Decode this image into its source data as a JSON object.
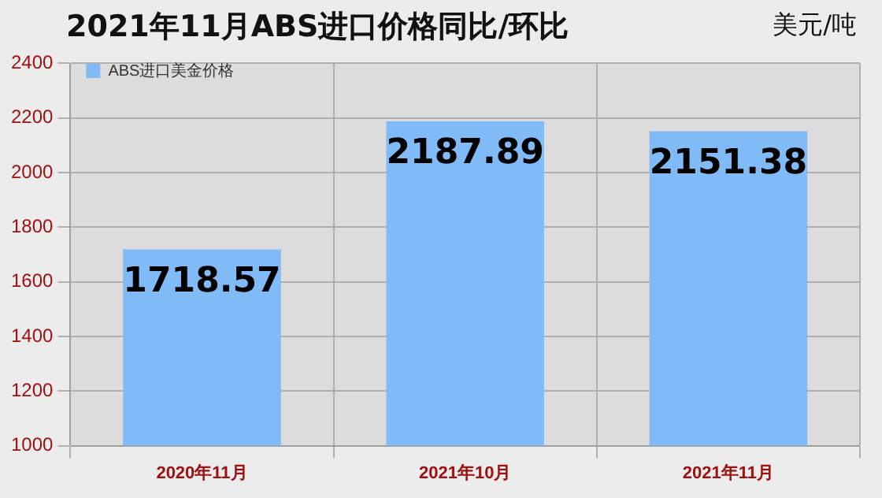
{
  "chart_data": {
    "type": "bar",
    "title": "2021年11月ABS进口价格同比/环比",
    "ylabel": "美元/吨",
    "categories": [
      "2020年11月",
      "2021年10月",
      "2021年11月"
    ],
    "series": [
      {
        "name": "ABS进口美金价格",
        "color": "#80bbf8",
        "values": [
          1718.57,
          2187.89,
          2151.38
        ]
      }
    ],
    "ylim": [
      1000,
      2400
    ],
    "yticks": [
      1000,
      1200,
      1400,
      1600,
      1800,
      2000,
      2200,
      2400
    ],
    "grid": true,
    "legend": "top left",
    "data_labels": true
  }
}
